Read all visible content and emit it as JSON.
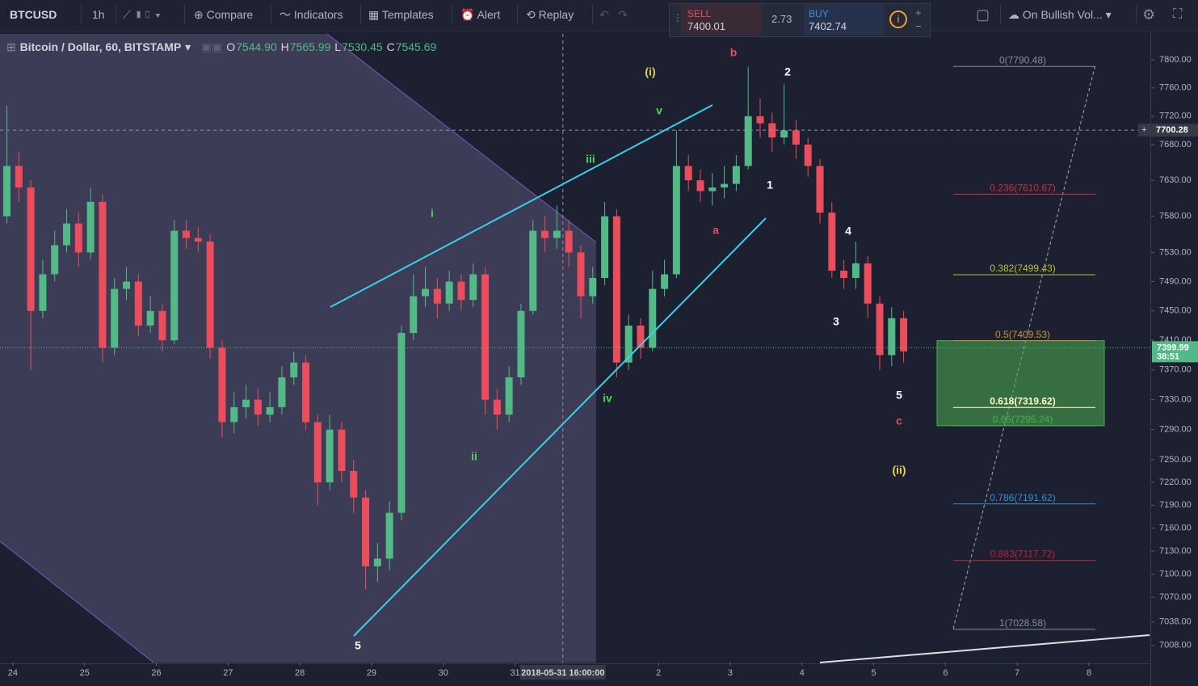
{
  "toolbar": {
    "symbol": "BTCUSD",
    "interval": "1h",
    "compare": "Compare",
    "indicators": "Indicators",
    "templates": "Templates",
    "alert": "Alert",
    "replay": "Replay",
    "sell_label": "SELL",
    "sell_price": "7400.01",
    "spread": "2.73",
    "buy_label": "BUY",
    "buy_price": "7402.74",
    "strategy": "On Bullish Vol..."
  },
  "legend": {
    "title": "Bitcoin / Dollar, 60, BITSTAMP",
    "o_label": "O",
    "open": "7544.90",
    "h_label": "H",
    "high": "7565.99",
    "l_label": "L",
    "low": "7530.45",
    "c_label": "C",
    "close": "7545.69"
  },
  "chart_data": {
    "type": "candlestick",
    "log": true,
    "grid": false,
    "xlim": [
      -4.3,
      380.8
    ],
    "ylim": [
      6986,
      7837
    ],
    "xticks": [
      {
        "value": 0,
        "label": "24"
      },
      {
        "value": 24,
        "label": "25"
      },
      {
        "value": 48,
        "label": "26"
      },
      {
        "value": 72,
        "label": "27"
      },
      {
        "value": 96,
        "label": "28"
      },
      {
        "value": 120,
        "label": "29"
      },
      {
        "value": 144,
        "label": "30"
      },
      {
        "value": 168,
        "label": "31"
      },
      {
        "value": 216,
        "label": "2"
      },
      {
        "value": 240,
        "label": "3"
      },
      {
        "value": 264,
        "label": "4"
      },
      {
        "value": 288,
        "label": "5"
      },
      {
        "value": 312,
        "label": "6"
      },
      {
        "value": 336,
        "label": "7"
      },
      {
        "value": 360,
        "label": "8"
      }
    ],
    "yticks": [
      {
        "value": 7800,
        "label": "7800.00"
      },
      {
        "value": 7760,
        "label": "7760.00"
      },
      {
        "value": 7720,
        "label": "7720.00"
      },
      {
        "value": 7680,
        "label": "7680.00"
      },
      {
        "value": 7630,
        "label": "7630.00"
      },
      {
        "value": 7580,
        "label": "7580.00"
      },
      {
        "value": 7530,
        "label": "7530.00"
      },
      {
        "value": 7490,
        "label": "7490.00"
      },
      {
        "value": 7450,
        "label": "7450.00"
      },
      {
        "value": 7410,
        "label": "7410.00"
      },
      {
        "value": 7370,
        "label": "7370.00"
      },
      {
        "value": 7330,
        "label": "7330.00"
      },
      {
        "value": 7290,
        "label": "7290.00"
      },
      {
        "value": 7250,
        "label": "7250.00"
      },
      {
        "value": 7220,
        "label": "7220.00"
      },
      {
        "value": 7190,
        "label": "7190.00"
      },
      {
        "value": 7160,
        "label": "7160.00"
      },
      {
        "value": 7130,
        "label": "7130.00"
      },
      {
        "value": 7100,
        "label": "7100.00"
      },
      {
        "value": 7070,
        "label": "7070.00"
      },
      {
        "value": 7038,
        "label": "7038.00"
      },
      {
        "value": 7008,
        "label": "7008.00"
      }
    ],
    "up_color": "#53b987",
    "down_color": "#eb4d5c",
    "x": [
      -2,
      2,
      6,
      10,
      14,
      18,
      22,
      26,
      30,
      34,
      38,
      42,
      46,
      50,
      54,
      58,
      62,
      66,
      70,
      74,
      78,
      82,
      86,
      90,
      94,
      98,
      102,
      106,
      110,
      114,
      118,
      122,
      126,
      130,
      134,
      138,
      142,
      146,
      150,
      154,
      158,
      162,
      166,
      170,
      174,
      178,
      182,
      186,
      190,
      194,
      198,
      202,
      206,
      210,
      214,
      218,
      222,
      226,
      230,
      234,
      238,
      242,
      246,
      250,
      254,
      258,
      262,
      266,
      270,
      274,
      278,
      282,
      286,
      290,
      294,
      298
    ],
    "open": [
      7580,
      7650,
      7620,
      7450,
      7500,
      7540,
      7570,
      7530,
      7600,
      7400,
      7480,
      7490,
      7430,
      7450,
      7410,
      7560,
      7550,
      7545,
      7400,
      7300,
      7320,
      7330,
      7310,
      7320,
      7360,
      7380,
      7300,
      7220,
      7290,
      7235,
      7200,
      7110,
      7120,
      7180,
      7420,
      7470,
      7480,
      7460,
      7490,
      7465,
      7500,
      7330,
      7310,
      7360,
      7450,
      7560,
      7550,
      7560,
      7530,
      7470,
      7495,
      7580,
      7380,
      7430,
      7400,
      7480,
      7500,
      7650,
      7630,
      7615,
      7620,
      7625,
      7650,
      7720,
      7710,
      7690,
      7700,
      7680,
      7650,
      7585,
      7505,
      7495,
      7515,
      7460,
      7390,
      7440
    ],
    "high": [
      7735,
      7670,
      7630,
      7520,
      7560,
      7590,
      7585,
      7620,
      7610,
      7495,
      7510,
      7500,
      7470,
      7460,
      7575,
      7575,
      7565,
      7555,
      7410,
      7340,
      7350,
      7345,
      7340,
      7375,
      7395,
      7390,
      7310,
      7310,
      7300,
      7250,
      7210,
      7140,
      7195,
      7430,
      7500,
      7510,
      7495,
      7505,
      7500,
      7515,
      7510,
      7345,
      7375,
      7460,
      7575,
      7580,
      7595,
      7575,
      7540,
      7510,
      7600,
      7590,
      7445,
      7440,
      7505,
      7520,
      7700,
      7665,
      7645,
      7640,
      7650,
      7665,
      7790,
      7745,
      7725,
      7765,
      7715,
      7690,
      7660,
      7600,
      7520,
      7545,
      7525,
      7470,
      7455,
      7450
    ],
    "low": [
      7570,
      7600,
      7370,
      7440,
      7490,
      7530,
      7510,
      7520,
      7380,
      7390,
      7465,
      7415,
      7420,
      7395,
      7405,
      7535,
      7530,
      7385,
      7280,
      7285,
      7305,
      7295,
      7300,
      7310,
      7350,
      7290,
      7190,
      7210,
      7220,
      7180,
      7080,
      7090,
      7105,
      7170,
      7410,
      7455,
      7440,
      7450,
      7450,
      7455,
      7310,
      7290,
      7300,
      7350,
      7445,
      7530,
      7535,
      7510,
      7440,
      7460,
      7485,
      7360,
      7370,
      7385,
      7395,
      7470,
      7495,
      7615,
      7600,
      7595,
      7605,
      7615,
      7645,
      7690,
      7670,
      7680,
      7660,
      7635,
      7570,
      7495,
      7480,
      7480,
      7440,
      7370,
      7375,
      7380
    ],
    "close": [
      7650,
      7620,
      7450,
      7500,
      7540,
      7570,
      7530,
      7600,
      7400,
      7480,
      7490,
      7430,
      7450,
      7410,
      7560,
      7550,
      7545,
      7400,
      7300,
      7320,
      7330,
      7310,
      7320,
      7360,
      7380,
      7300,
      7220,
      7290,
      7235,
      7200,
      7110,
      7120,
      7180,
      7420,
      7470,
      7480,
      7460,
      7490,
      7465,
      7500,
      7330,
      7310,
      7360,
      7450,
      7560,
      7550,
      7560,
      7530,
      7470,
      7495,
      7580,
      7380,
      7430,
      7400,
      7480,
      7500,
      7650,
      7630,
      7615,
      7620,
      7625,
      7650,
      7720,
      7710,
      7690,
      7700,
      7680,
      7650,
      7585,
      7505,
      7495,
      7515,
      7460,
      7390,
      7440,
      7395
    ],
    "last_price": {
      "value": 7399.99,
      "label": "7399.99"
    },
    "countdown": "38:51",
    "crosshair": {
      "x": {
        "value": 184,
        "label": "2018-05-31 16:00:00"
      },
      "y": {
        "value": 7700.28,
        "label": "7700.28"
      }
    },
    "fib_levels": [
      {
        "value": 7790.48,
        "label": "0(7790.48)",
        "color": "#8a8d96"
      },
      {
        "value": 7610.67,
        "label": "0.236(7610.67)",
        "color": "#c8303c"
      },
      {
        "value": 7499.43,
        "label": "0.382(7499.43)",
        "color": "#b8c236"
      },
      {
        "value": 7409.53,
        "label": "0.5(7409.53)",
        "color": "#c8952e"
      },
      {
        "value": 7319.62,
        "label": "0.618(7319.62)",
        "color": "#ffffcc"
      },
      {
        "value": 7295.24,
        "label": "0.65(7295.24)",
        "color": "#4caf50"
      },
      {
        "value": 7191.62,
        "label": "0.786(7191.62)",
        "color": "#3a8fd6"
      },
      {
        "value": 7117.72,
        "label": "0.883(7117.72)",
        "color": "#c02030"
      },
      {
        "value": 7028.58,
        "label": "1(7028.58)",
        "color": "#8a8d96"
      }
    ],
    "wave_labels": [
      "(i)",
      "b",
      "2",
      "v",
      "iii",
      "i",
      "a",
      "1",
      "4",
      "3",
      "iv",
      "ii",
      "5",
      "c",
      "(ii)",
      "5"
    ]
  }
}
